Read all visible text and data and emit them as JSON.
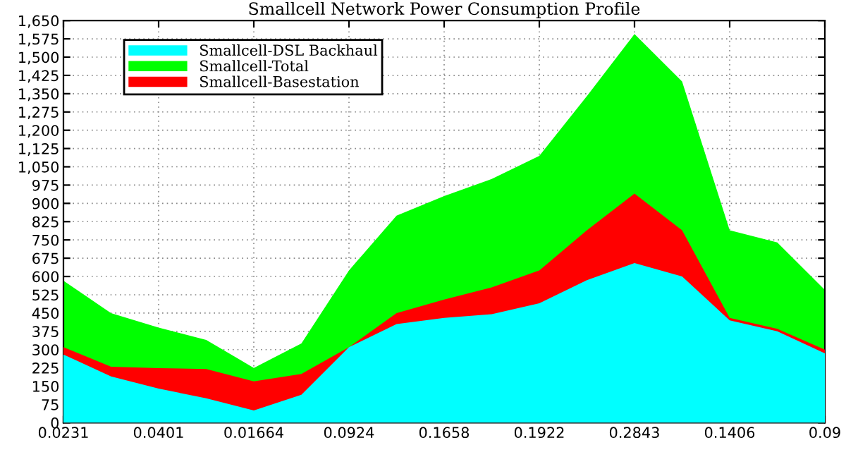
{
  "chart_data": {
    "type": "area",
    "title": "Smallcell Network Power Consumption Profile",
    "categories": [
      "0.0231",
      null,
      "0.0401",
      null,
      "0.01664",
      null,
      "0.0924",
      null,
      "0.1658",
      null,
      "0.1922",
      null,
      "0.2843",
      null,
      "0.1406",
      null,
      "0.09"
    ],
    "ylim": [
      0,
      1650
    ],
    "yticks": [
      0,
      75,
      150,
      225,
      300,
      375,
      450,
      525,
      600,
      675,
      750,
      825,
      900,
      975,
      {
        "value": 1050,
        "label": "1,050"
      },
      {
        "value": 1125,
        "label": "1,125"
      },
      {
        "value": 1200,
        "label": "1,200"
      },
      {
        "value": 1275,
        "label": "1,275"
      },
      {
        "value": 1350,
        "label": "1,350"
      },
      {
        "value": 1425,
        "label": "1,425"
      },
      {
        "value": 1500,
        "label": "1,500"
      },
      {
        "value": 1575,
        "label": "1,575"
      },
      {
        "value": 1650,
        "label": "1,650"
      }
    ],
    "series": [
      {
        "name": "Smallcell-DSL Backhaul",
        "color": "#00ffff",
        "values": [
          280,
          190,
          140,
          100,
          50,
          115,
          310,
          405,
          430,
          445,
          490,
          585,
          655,
          600,
          420,
          375,
          285
        ]
      },
      {
        "name": "Smallcell-Total",
        "color": "#00ff00",
        "values": [
          583,
          450,
          390,
          340,
          225,
          325,
          625,
          850,
          930,
          1000,
          1095,
          1340,
          1595,
          1400,
          790,
          740,
          545
        ]
      },
      {
        "name": "Smallcell-Basestation",
        "color": "#ff0000",
        "values": [
          310,
          230,
          224,
          220,
          170,
          200,
          310,
          450,
          505,
          555,
          625,
          790,
          940,
          790,
          430,
          385,
          300
        ]
      }
    ],
    "grid": true,
    "legend": "top left"
  }
}
